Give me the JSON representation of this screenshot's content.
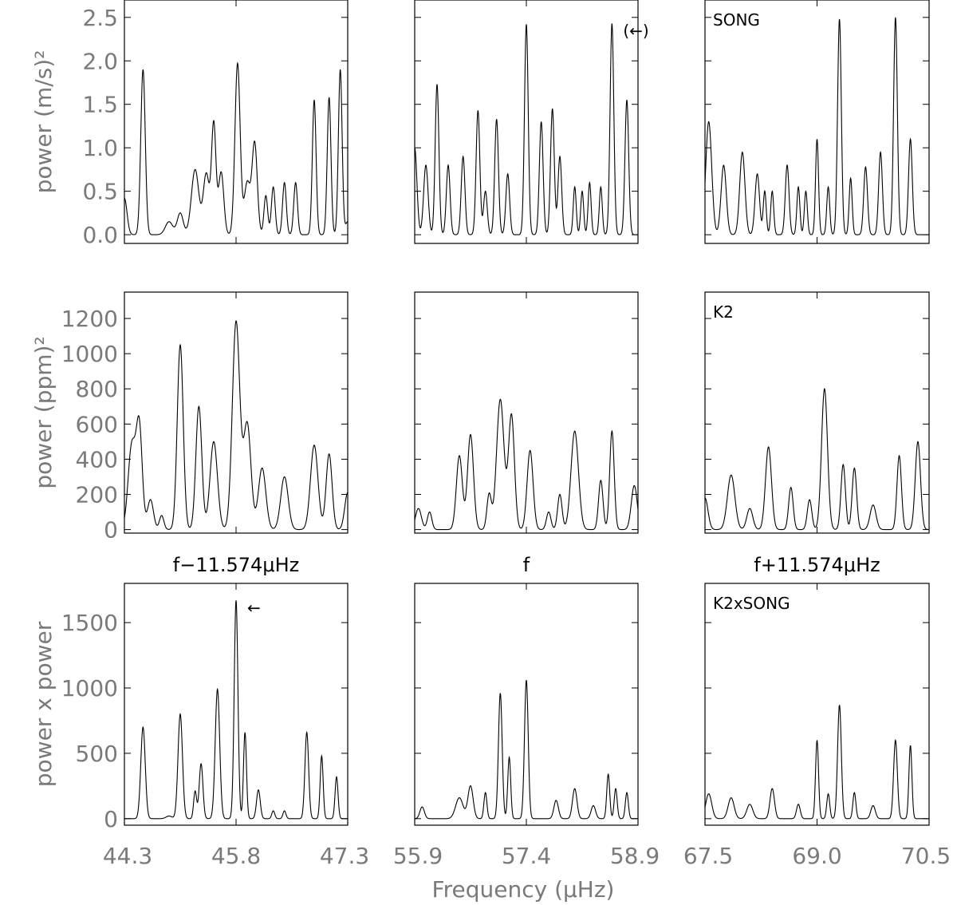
{
  "chart_data": {
    "type": "line",
    "xlabel": "Frequency (μHz)",
    "column_xticks": [
      [
        "44.3",
        "45.8",
        "47.3"
      ],
      [
        "55.9",
        "57.4",
        "58.9"
      ],
      [
        "67.5",
        "69.0",
        "70.5"
      ]
    ],
    "xlims": [
      [
        44.3,
        47.3
      ],
      [
        55.9,
        58.9
      ],
      [
        67.5,
        70.5
      ]
    ],
    "rows": [
      {
        "ylabel": "power (m/s)²",
        "ylim": [
          -0.1,
          2.7
        ],
        "yticks": [
          0.0,
          0.5,
          1.0,
          1.5,
          2.0,
          2.5
        ],
        "ytick_labels": [
          "0.0",
          "0.5",
          "1.0",
          "1.5",
          "2.0",
          "2.5"
        ],
        "panels": [
          {
            "panel_label": "",
            "annotation": "",
            "peaks": [
              [
                44.3,
                0.42,
                0.035
              ],
              [
                44.55,
                1.9,
                0.03
              ],
              [
                44.9,
                0.15,
                0.05
              ],
              [
                45.05,
                0.25,
                0.04
              ],
              [
                45.25,
                0.75,
                0.05
              ],
              [
                45.4,
                0.7,
                0.04
              ],
              [
                45.5,
                1.27,
                0.03
              ],
              [
                45.6,
                0.72,
                0.035
              ],
              [
                45.82,
                1.97,
                0.035
              ],
              [
                45.95,
                0.6,
                0.04
              ],
              [
                46.05,
                1.05,
                0.035
              ],
              [
                46.2,
                0.45,
                0.025
              ],
              [
                46.3,
                0.55,
                0.025
              ],
              [
                46.45,
                0.6,
                0.025
              ],
              [
                46.6,
                0.6,
                0.025
              ],
              [
                46.85,
                1.55,
                0.025
              ],
              [
                47.05,
                1.58,
                0.025
              ],
              [
                47.2,
                1.9,
                0.025
              ],
              [
                47.3,
                0.15,
                0.03
              ]
            ]
          },
          {
            "panel_label": "",
            "annotation": "(←)",
            "peaks": [
              [
                55.9,
                1.0,
                0.03
              ],
              [
                56.05,
                0.8,
                0.03
              ],
              [
                56.2,
                1.73,
                0.025
              ],
              [
                56.35,
                0.8,
                0.025
              ],
              [
                56.55,
                0.9,
                0.025
              ],
              [
                56.75,
                1.43,
                0.025
              ],
              [
                56.85,
                0.5,
                0.025
              ],
              [
                57.0,
                1.33,
                0.025
              ],
              [
                57.15,
                0.7,
                0.025
              ],
              [
                57.4,
                2.42,
                0.025
              ],
              [
                57.6,
                1.3,
                0.025
              ],
              [
                57.75,
                1.45,
                0.025
              ],
              [
                57.85,
                0.9,
                0.025
              ],
              [
                58.05,
                0.55,
                0.02
              ],
              [
                58.15,
                0.5,
                0.02
              ],
              [
                58.25,
                0.6,
                0.02
              ],
              [
                58.4,
                0.55,
                0.02
              ],
              [
                58.55,
                2.43,
                0.025
              ],
              [
                58.75,
                1.55,
                0.025
              ]
            ]
          },
          {
            "panel_label": "SONG",
            "annotation": "",
            "peaks": [
              [
                67.55,
                1.3,
                0.04
              ],
              [
                67.75,
                0.8,
                0.035
              ],
              [
                68.0,
                0.95,
                0.035
              ],
              [
                68.2,
                0.7,
                0.03
              ],
              [
                68.3,
                0.5,
                0.02
              ],
              [
                68.4,
                0.5,
                0.02
              ],
              [
                68.6,
                0.8,
                0.025
              ],
              [
                68.75,
                0.55,
                0.02
              ],
              [
                68.85,
                0.5,
                0.02
              ],
              [
                69.0,
                1.1,
                0.02
              ],
              [
                69.15,
                0.55,
                0.02
              ],
              [
                69.3,
                2.48,
                0.025
              ],
              [
                69.45,
                0.65,
                0.02
              ],
              [
                69.65,
                0.78,
                0.025
              ],
              [
                69.85,
                0.95,
                0.025
              ],
              [
                70.05,
                2.5,
                0.025
              ],
              [
                70.25,
                1.1,
                0.025
              ]
            ]
          }
        ]
      },
      {
        "ylabel": "power (ppm)²",
        "ylim": [
          -20,
          1350
        ],
        "yticks": [
          0,
          200,
          400,
          600,
          800,
          1000,
          1200
        ],
        "ytick_labels": [
          "0",
          "200",
          "400",
          "600",
          "800",
          "1000",
          "1200"
        ],
        "col_titles": [
          "f−11.574μHz",
          "f",
          "f+11.574μHz"
        ],
        "panels": [
          {
            "panel_label": "",
            "annotation": "",
            "peaks": [
              [
                44.4,
                480,
                0.05
              ],
              [
                44.5,
                570,
                0.04
              ],
              [
                44.65,
                170,
                0.04
              ],
              [
                44.8,
                80,
                0.03
              ],
              [
                45.05,
                1050,
                0.04
              ],
              [
                45.3,
                700,
                0.04
              ],
              [
                45.5,
                500,
                0.05
              ],
              [
                45.8,
                1180,
                0.05
              ],
              [
                45.95,
                600,
                0.05
              ],
              [
                46.15,
                350,
                0.05
              ],
              [
                46.45,
                300,
                0.05
              ],
              [
                46.85,
                480,
                0.05
              ],
              [
                47.05,
                430,
                0.04
              ],
              [
                47.3,
                210,
                0.04
              ]
            ]
          },
          {
            "panel_label": "",
            "annotation": "",
            "peaks": [
              [
                55.95,
                120,
                0.04
              ],
              [
                56.1,
                100,
                0.03
              ],
              [
                56.5,
                420,
                0.04
              ],
              [
                56.65,
                540,
                0.04
              ],
              [
                56.9,
                200,
                0.03
              ],
              [
                57.05,
                740,
                0.05
              ],
              [
                57.2,
                650,
                0.04
              ],
              [
                57.45,
                450,
                0.04
              ],
              [
                57.7,
                100,
                0.03
              ],
              [
                57.85,
                200,
                0.03
              ],
              [
                58.05,
                560,
                0.05
              ],
              [
                58.4,
                280,
                0.03
              ],
              [
                58.55,
                560,
                0.03
              ],
              [
                58.85,
                250,
                0.04
              ]
            ]
          },
          {
            "panel_label": "K2",
            "annotation": "",
            "peaks": [
              [
                67.5,
                180,
                0.04
              ],
              [
                67.85,
                310,
                0.05
              ],
              [
                68.1,
                120,
                0.04
              ],
              [
                68.35,
                470,
                0.04
              ],
              [
                68.65,
                240,
                0.03
              ],
              [
                68.9,
                170,
                0.03
              ],
              [
                69.1,
                800,
                0.04
              ],
              [
                69.35,
                370,
                0.03
              ],
              [
                69.5,
                350,
                0.03
              ],
              [
                69.75,
                140,
                0.04
              ],
              [
                70.1,
                420,
                0.03
              ],
              [
                70.35,
                500,
                0.035
              ]
            ]
          }
        ]
      },
      {
        "ylabel": "power x power",
        "ylim": [
          -50,
          1800
        ],
        "yticks": [
          0,
          500,
          1000,
          1500
        ],
        "ytick_labels": [
          "0",
          "500",
          "1000",
          "1500"
        ],
        "col_titles": [
          "f−11.574μHz",
          "f",
          "f+11.574μHz"
        ],
        "panels": [
          {
            "panel_label": "",
            "annotation": "←",
            "peaks": [
              [
                44.55,
                700,
                0.03
              ],
              [
                44.9,
                20,
                0.04
              ],
              [
                45.05,
                800,
                0.03
              ],
              [
                45.25,
                210,
                0.02
              ],
              [
                45.33,
                420,
                0.025
              ],
              [
                45.55,
                990,
                0.03
              ],
              [
                45.8,
                1670,
                0.025
              ],
              [
                45.92,
                660,
                0.02
              ],
              [
                46.1,
                220,
                0.025
              ],
              [
                46.3,
                60,
                0.02
              ],
              [
                46.45,
                60,
                0.02
              ],
              [
                46.75,
                660,
                0.025
              ],
              [
                46.95,
                480,
                0.02
              ],
              [
                47.15,
                320,
                0.02
              ]
            ]
          },
          {
            "panel_label": "",
            "annotation": "",
            "peaks": [
              [
                56.0,
                90,
                0.03
              ],
              [
                56.5,
                160,
                0.05
              ],
              [
                56.65,
                250,
                0.035
              ],
              [
                56.85,
                200,
                0.02
              ],
              [
                57.05,
                960,
                0.025
              ],
              [
                57.17,
                470,
                0.02
              ],
              [
                57.4,
                1060,
                0.025
              ],
              [
                57.8,
                140,
                0.03
              ],
              [
                58.05,
                230,
                0.03
              ],
              [
                58.3,
                100,
                0.03
              ],
              [
                58.5,
                340,
                0.02
              ],
              [
                58.6,
                230,
                0.02
              ],
              [
                58.75,
                200,
                0.02
              ]
            ]
          },
          {
            "panel_label": "K2xSONG",
            "annotation": "",
            "peaks": [
              [
                67.55,
                190,
                0.04
              ],
              [
                67.85,
                160,
                0.04
              ],
              [
                68.1,
                110,
                0.04
              ],
              [
                68.4,
                230,
                0.03
              ],
              [
                68.75,
                110,
                0.025
              ],
              [
                69.0,
                600,
                0.02
              ],
              [
                69.15,
                190,
                0.02
              ],
              [
                69.3,
                870,
                0.025
              ],
              [
                69.5,
                200,
                0.02
              ],
              [
                69.75,
                100,
                0.03
              ],
              [
                70.05,
                600,
                0.025
              ],
              [
                70.25,
                560,
                0.02
              ]
            ]
          }
        ]
      }
    ]
  }
}
